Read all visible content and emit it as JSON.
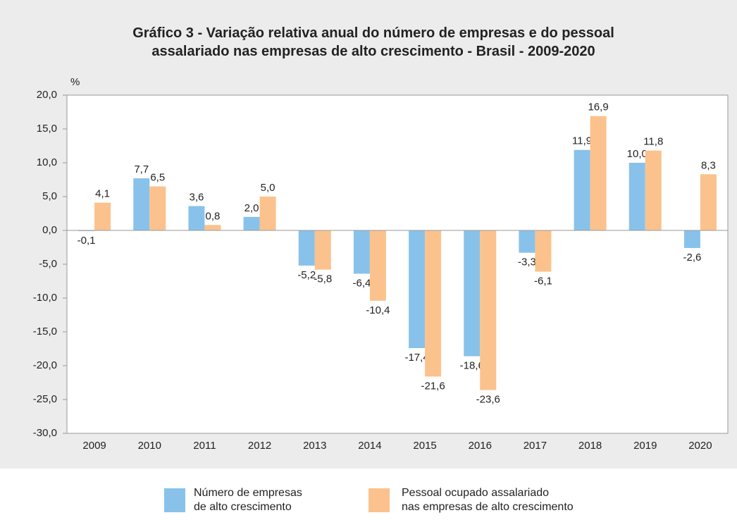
{
  "chart_data": {
    "type": "bar",
    "title": "Gráfico 3 - Variação relativa anual do número de empresas e do pessoal\nassalariado nas empresas de alto crescimento - Brasil - 2009-2020",
    "y_label": "%",
    "categories": [
      "2009",
      "2010",
      "2011",
      "2012",
      "2013",
      "2014",
      "2015",
      "2016",
      "2017",
      "2018",
      "2019",
      "2020"
    ],
    "series": [
      {
        "name": "Número de empresas\nde alto crescimento",
        "color": "#88c2ea",
        "values": [
          -0.1,
          7.7,
          3.6,
          2.0,
          -5.2,
          -6.4,
          -17.4,
          -18.6,
          -3.3,
          11.9,
          10.0,
          -2.6
        ],
        "value_labels": [
          "-0,1",
          "7,7",
          "3,6",
          "2,0",
          "-5,2",
          "-6,4",
          "-17,4",
          "-18,6",
          "-3,3",
          "11,9",
          "10,0",
          "-2,6"
        ]
      },
      {
        "name": "Pessoal ocupado assalariado\nnas empresas de alto crescimento",
        "color": "#fbc28d",
        "values": [
          4.1,
          6.5,
          0.8,
          5.0,
          -5.8,
          -10.4,
          -21.6,
          -23.6,
          -6.1,
          16.9,
          11.8,
          8.3
        ],
        "value_labels": [
          "4,1",
          "6,5",
          "0,8",
          "5,0",
          "-5,8",
          "-10,4",
          "-21,6",
          "-23,6",
          "-6,1",
          "16,9",
          "11,8",
          "8,3"
        ]
      }
    ],
    "ylim": [
      -30,
      20
    ],
    "yticks": [
      {
        "value": -30,
        "label": "-30,0"
      },
      {
        "value": -25,
        "label": "-25,0"
      },
      {
        "value": -20,
        "label": "-20,0"
      },
      {
        "value": -15,
        "label": "-15,0"
      },
      {
        "value": -10,
        "label": "-10,0"
      },
      {
        "value": -5,
        "label": "-5,0"
      },
      {
        "value": 0,
        "label": "0,0"
      },
      {
        "value": 5,
        "label": "5,0"
      },
      {
        "value": 10,
        "label": "10,0"
      },
      {
        "value": 15,
        "label": "15,0"
      },
      {
        "value": 20,
        "label": "20,0"
      }
    ],
    "grid": false
  }
}
